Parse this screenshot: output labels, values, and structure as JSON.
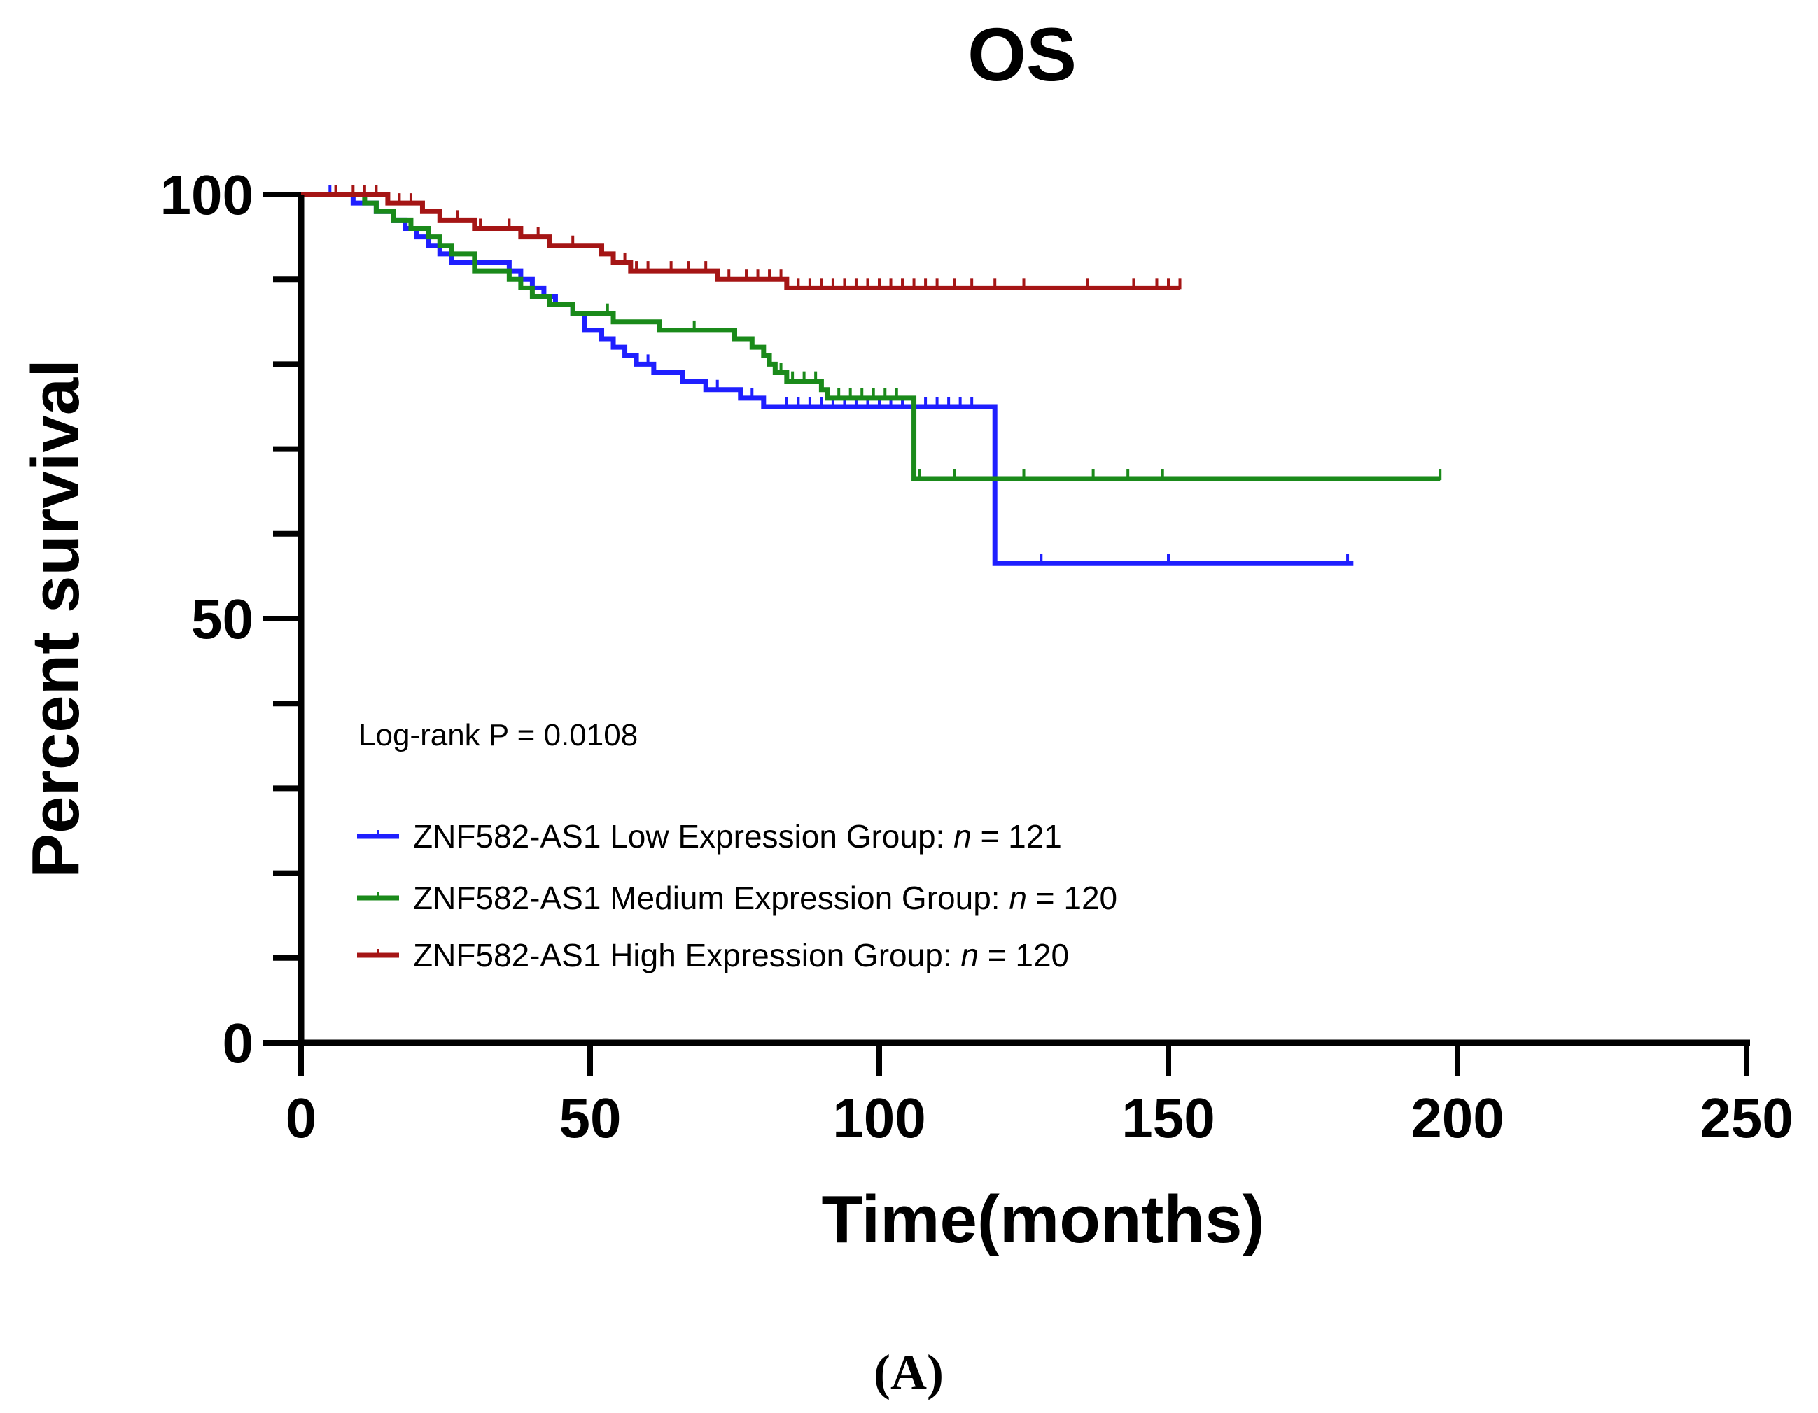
{
  "chart_data": {
    "type": "line",
    "subtype": "kaplan-meier",
    "title": "OS",
    "xlabel": "Time(months)",
    "ylabel": "Percent survival",
    "xlim": [
      0,
      250
    ],
    "ylim": [
      0,
      100
    ],
    "x_ticks": [
      0,
      50,
      100,
      150,
      200,
      250
    ],
    "y_ticks": [
      0,
      50,
      100
    ],
    "annotation": "Log-rank P = 0.0108",
    "panel_label": "(A)",
    "legend_position": "lower-left inside plot",
    "series": [
      {
        "name_prefix": "ZNF582-AS1 Low Expression Group: ",
        "n_symbol": "n",
        "n_text": " = 121",
        "color": "#1f1fff",
        "steps": [
          [
            0,
            100
          ],
          [
            9,
            99
          ],
          [
            13,
            98
          ],
          [
            16,
            97
          ],
          [
            18,
            96
          ],
          [
            20,
            95
          ],
          [
            22,
            94
          ],
          [
            24,
            93
          ],
          [
            26,
            92
          ],
          [
            36,
            91
          ],
          [
            38,
            90
          ],
          [
            40,
            89
          ],
          [
            42,
            88
          ],
          [
            44,
            87
          ],
          [
            47,
            86
          ],
          [
            49,
            84
          ],
          [
            52,
            83
          ],
          [
            54,
            82
          ],
          [
            56,
            81
          ],
          [
            58,
            80
          ],
          [
            61,
            79
          ],
          [
            66,
            78
          ],
          [
            70,
            77
          ],
          [
            76,
            76
          ],
          [
            80,
            75
          ],
          [
            120,
            75
          ],
          [
            120,
            56.5
          ],
          [
            182,
            56.5
          ]
        ],
        "censors": [
          5,
          60,
          72,
          78,
          84,
          86,
          88,
          90,
          92,
          94,
          96,
          98,
          100,
          102,
          104,
          106,
          108,
          110,
          112,
          114,
          116,
          128,
          150,
          181
        ]
      },
      {
        "name_prefix": "ZNF582-AS1 Medium Expression Group: ",
        "n_symbol": "n",
        "n_text": " = 120",
        "color": "#1a8a1a",
        "steps": [
          [
            0,
            100
          ],
          [
            11,
            99
          ],
          [
            13,
            98
          ],
          [
            16,
            97
          ],
          [
            19,
            96
          ],
          [
            22,
            95
          ],
          [
            24,
            94
          ],
          [
            26,
            93
          ],
          [
            30,
            91
          ],
          [
            36,
            90
          ],
          [
            38,
            89
          ],
          [
            40,
            88
          ],
          [
            43,
            87
          ],
          [
            47,
            86
          ],
          [
            54,
            85
          ],
          [
            62,
            84
          ],
          [
            75,
            83
          ],
          [
            78,
            82
          ],
          [
            80,
            81
          ],
          [
            81,
            80
          ],
          [
            82,
            79
          ],
          [
            84,
            78
          ],
          [
            90,
            77
          ],
          [
            91,
            76
          ],
          [
            106,
            76
          ],
          [
            106,
            66.5
          ],
          [
            197,
            66.5
          ]
        ],
        "censors": [
          53,
          68,
          75,
          83,
          85,
          87,
          89,
          93,
          95,
          97,
          99,
          101,
          103,
          107,
          113,
          125,
          137,
          143,
          149,
          197
        ]
      },
      {
        "name_prefix": "ZNF582-AS1 High Expression Group: ",
        "n_symbol": "n",
        "n_text": " = 120",
        "color": "#a51515",
        "steps": [
          [
            0,
            100
          ],
          [
            15,
            99
          ],
          [
            21,
            98
          ],
          [
            24,
            97
          ],
          [
            30,
            96
          ],
          [
            38,
            95
          ],
          [
            43,
            94
          ],
          [
            52,
            93
          ],
          [
            54,
            92
          ],
          [
            57,
            91
          ],
          [
            72,
            90
          ],
          [
            84,
            89
          ],
          [
            152,
            89
          ]
        ],
        "censors": [
          6,
          9,
          11,
          13,
          17,
          19,
          27,
          31,
          36,
          41,
          47,
          52,
          56,
          58,
          60,
          64,
          67,
          70,
          74,
          77,
          79,
          81,
          83,
          86,
          88,
          90,
          92,
          94,
          96,
          98,
          100,
          102,
          104,
          106,
          108,
          110,
          113,
          116,
          120,
          125,
          136,
          144,
          148,
          150,
          152
        ]
      }
    ]
  }
}
